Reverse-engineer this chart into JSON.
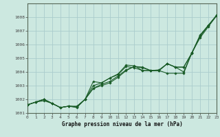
{
  "title": "Graphe pression niveau de la mer (hPa)",
  "bg_color": "#cce8e0",
  "grid_color": "#aacccc",
  "line_color": "#1a5c28",
  "xlim": [
    0,
    23
  ],
  "ylim": [
    1001,
    1009
  ],
  "xticks": [
    0,
    1,
    2,
    3,
    4,
    5,
    6,
    7,
    8,
    9,
    10,
    11,
    12,
    13,
    14,
    15,
    16,
    17,
    18,
    19,
    20,
    21,
    22,
    23
  ],
  "yticks": [
    1001,
    1002,
    1003,
    1004,
    1005,
    1006,
    1007,
    1008
  ],
  "series": [
    [
      1001.6,
      1001.8,
      1001.9,
      1001.7,
      1001.4,
      1001.5,
      1001.5,
      1002.0,
      1002.8,
      1003.0,
      1003.2,
      1003.6,
      1004.1,
      1004.4,
      1004.3,
      1004.1,
      1004.1,
      1003.9,
      1003.9,
      1003.9,
      1005.4,
      1006.5,
      1007.3,
      1008.1
    ],
    [
      1001.6,
      1001.8,
      1002.0,
      1001.7,
      1001.4,
      1001.5,
      1001.4,
      1002.0,
      1002.8,
      1003.1,
      1003.3,
      1003.7,
      1004.15,
      1004.4,
      1004.35,
      1004.1,
      1004.1,
      1004.6,
      1004.35,
      1004.0,
      1005.4,
      1006.6,
      1007.4,
      1008.1
    ],
    [
      1001.6,
      1001.8,
      1002.0,
      1001.7,
      1001.4,
      1001.5,
      1001.45,
      1002.0,
      1003.3,
      1003.2,
      1003.55,
      1003.8,
      1004.4,
      1004.3,
      1004.1,
      1004.1,
      1004.1,
      1004.6,
      1004.35,
      1004.35,
      1005.4,
      1006.7,
      1007.4,
      1008.15
    ],
    [
      1001.6,
      1001.8,
      1002.0,
      1001.7,
      1001.4,
      1001.5,
      1001.45,
      1002.0,
      1003.0,
      1003.2,
      1003.55,
      1003.85,
      1004.5,
      1004.45,
      1004.1,
      1004.1,
      1004.15,
      1004.6,
      1004.35,
      1004.35,
      1005.35,
      1006.65,
      1007.4,
      1008.1
    ]
  ]
}
